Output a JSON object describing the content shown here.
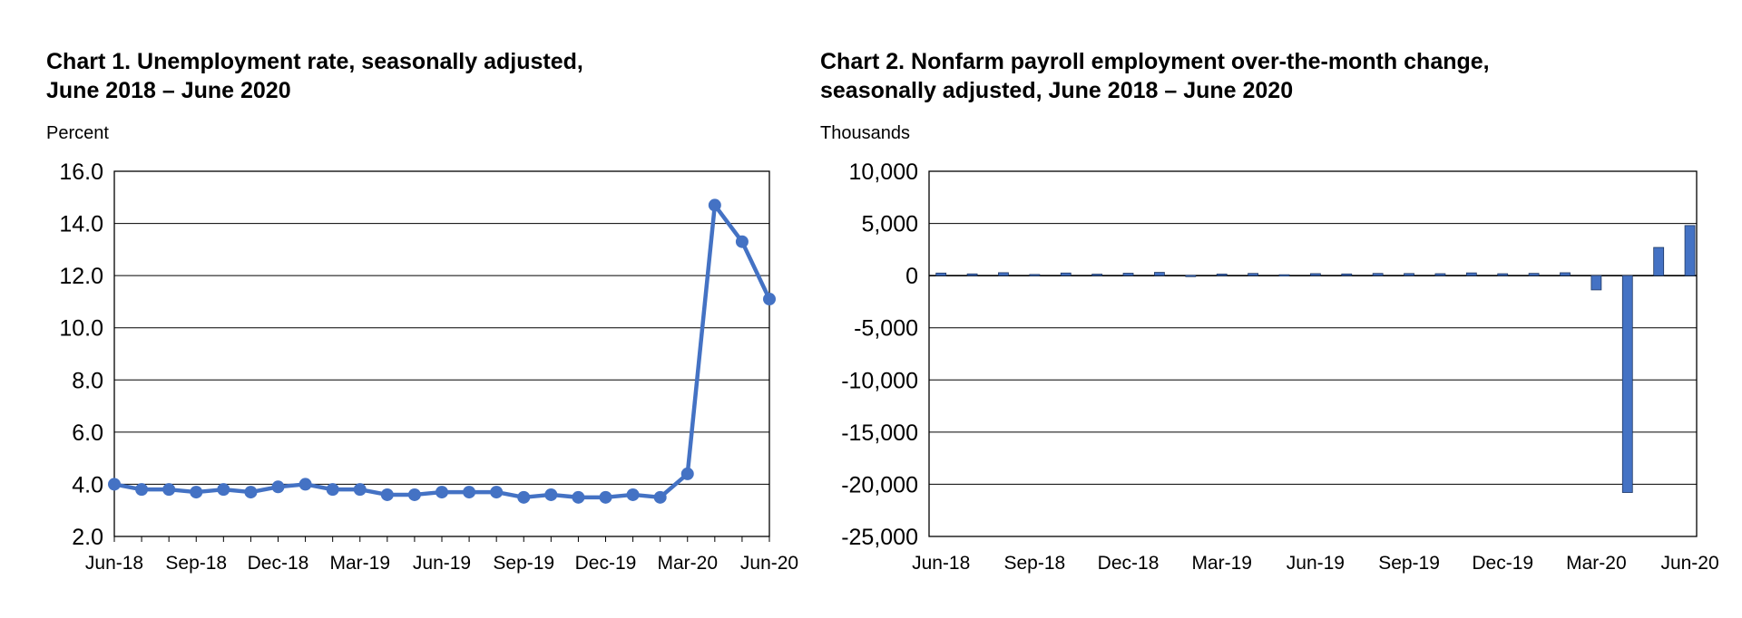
{
  "chart_data": [
    {
      "type": "line",
      "title_lines": [
        "Chart 1. Unemployment rate, seasonally adjusted,",
        "June 2018 – June 2020"
      ],
      "ylabel": "Percent",
      "ylim": [
        2.0,
        16.0
      ],
      "ytick_labels": [
        "2.0",
        "4.0",
        "6.0",
        "8.0",
        "10.0",
        "12.0",
        "14.0",
        "16.0"
      ],
      "yticks": [
        2,
        4,
        6,
        8,
        10,
        12,
        14,
        16
      ],
      "xtick_labels": [
        "Jun-18",
        "Sep-18",
        "Dec-18",
        "Mar-19",
        "Jun-19",
        "Sep-19",
        "Dec-19",
        "Mar-20",
        "Jun-20"
      ],
      "grid": true,
      "legend": "none",
      "color": "#4472C4",
      "x": [
        "Jun-18",
        "Jul-18",
        "Aug-18",
        "Sep-18",
        "Oct-18",
        "Nov-18",
        "Dec-18",
        "Jan-19",
        "Feb-19",
        "Mar-19",
        "Apr-19",
        "May-19",
        "Jun-19",
        "Jul-19",
        "Aug-19",
        "Sep-19",
        "Oct-19",
        "Nov-19",
        "Dec-19",
        "Jan-20",
        "Feb-20",
        "Mar-20",
        "Apr-20",
        "May-20",
        "Jun-20"
      ],
      "values": [
        4.0,
        3.8,
        3.8,
        3.7,
        3.8,
        3.7,
        3.9,
        4.0,
        3.8,
        3.8,
        3.6,
        3.6,
        3.7,
        3.7,
        3.7,
        3.5,
        3.6,
        3.5,
        3.5,
        3.6,
        3.5,
        4.4,
        14.7,
        13.3,
        11.1
      ]
    },
    {
      "type": "bar",
      "title_lines": [
        "Chart 2. Nonfarm payroll employment over-the-month change,",
        "seasonally adjusted, June 2018 – June 2020"
      ],
      "ylabel": "Thousands",
      "ylim": [
        -25000,
        10000
      ],
      "ytick_labels": [
        "-25,000",
        "-20,000",
        "-15,000",
        "-10,000",
        "-5,000",
        "0",
        "5,000",
        "10,000"
      ],
      "yticks": [
        -25000,
        -20000,
        -15000,
        -10000,
        -5000,
        0,
        5000,
        10000
      ],
      "xtick_labels": [
        "Jun-18",
        "Sep-18",
        "Dec-18",
        "Mar-19",
        "Jun-19",
        "Sep-19",
        "Dec-19",
        "Mar-20",
        "Jun-20"
      ],
      "grid": true,
      "legend": "none",
      "color": "#4472C4",
      "categories": [
        "Jun-18",
        "Jul-18",
        "Aug-18",
        "Sep-18",
        "Oct-18",
        "Nov-18",
        "Dec-18",
        "Jan-19",
        "Feb-19",
        "Mar-19",
        "Apr-19",
        "May-19",
        "Jun-19",
        "Jul-19",
        "Aug-19",
        "Sep-19",
        "Oct-19",
        "Nov-19",
        "Dec-19",
        "Jan-20",
        "Feb-20",
        "Mar-20",
        "Apr-20",
        "May-20",
        "Jun-20"
      ],
      "values": [
        245,
        165,
        280,
        110,
        250,
        140,
        230,
        310,
        30,
        150,
        210,
        85,
        190,
        160,
        210,
        200,
        185,
        260,
        180,
        215,
        275,
        -1370,
        -20790,
        2700,
        4800
      ]
    }
  ]
}
